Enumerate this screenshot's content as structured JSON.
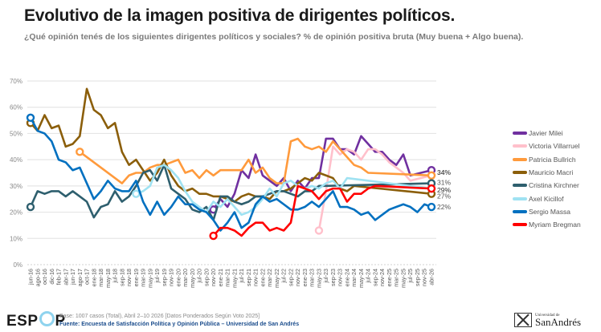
{
  "header": {
    "title": "Evolutivo de la imagen positiva de dirigentes políticos.",
    "subtitle": "¿Qué opinión tenés de los siguientes dirigentes políticos y sociales? % de opinión positiva bruta (Muy buena + Algo buena)."
  },
  "footer": {
    "logo": "ESPOP",
    "base": "Base: 1007 casos (Total), Abril 2–10 2026 [Datos Ponderados Según Voto 2025]",
    "fuente": "Fuente: Encuesta de Satisfacción Política y Opinión Pública – Universidad de San Andrés",
    "university_small": "Universidad de",
    "university_big": "SanAndrés"
  },
  "chart_data": {
    "type": "line",
    "title": "Evolutivo de la imagen positiva de dirigentes políticos.",
    "xlabel": "",
    "ylabel": "",
    "ylim": [
      0,
      70
    ],
    "yticks": [
      "0%",
      "10%",
      "20%",
      "30%",
      "40%",
      "50%",
      "60%",
      "70%"
    ],
    "grid": true,
    "legend_position": "right",
    "x": [
      "jun-16",
      "ago-16",
      "oct-16",
      "dic-16",
      "feb-17",
      "abr-17",
      "jun-17",
      "ago-17",
      "oct-17",
      "ene-18",
      "mar-18",
      "may-18",
      "jul-18",
      "sep-18",
      "nov-18",
      "ene-19",
      "mar-19",
      "may-19",
      "jul-19",
      "sep-19",
      "nov-19",
      "ene-20",
      "mar-20",
      "may-20",
      "jul-20",
      "sep-20",
      "nov-20",
      "ene-21",
      "mar-21",
      "may-21",
      "jul-21",
      "sep-21",
      "nov-21",
      "ene-22",
      "mar-22",
      "may-22",
      "jul-22",
      "sep-22",
      "nov-22",
      "ene-23",
      "mar-23",
      "may-23",
      "jul-23",
      "sep-23",
      "nov-23",
      "ene-24",
      "mar-24",
      "may-24",
      "jul-24",
      "sep-24",
      "nov-24",
      "ene-25",
      "mar-25",
      "may-25",
      "jul-25",
      "sep-25",
      "nov-25",
      "abr-26"
    ],
    "series": [
      {
        "name": "Javier Milei",
        "color": "#7030a0",
        "end_label": "",
        "values": [
          null,
          null,
          null,
          null,
          null,
          null,
          null,
          null,
          null,
          null,
          null,
          null,
          null,
          null,
          null,
          null,
          null,
          null,
          null,
          null,
          null,
          null,
          null,
          null,
          null,
          null,
          21,
          25,
          22,
          27,
          36,
          33,
          42,
          34,
          32,
          30,
          33,
          28,
          32,
          29,
          33,
          33,
          48,
          48,
          44,
          44,
          42,
          49,
          46,
          43,
          43,
          40,
          38,
          42,
          34,
          null,
          null,
          36
        ]
      },
      {
        "name": "Victoria Villarruel",
        "color": "#ffc0cb",
        "end_label": "",
        "values": [
          null,
          null,
          null,
          null,
          null,
          null,
          null,
          null,
          null,
          null,
          null,
          null,
          null,
          null,
          null,
          null,
          null,
          null,
          null,
          null,
          null,
          null,
          null,
          null,
          null,
          null,
          null,
          null,
          null,
          null,
          null,
          null,
          null,
          null,
          null,
          null,
          null,
          null,
          null,
          null,
          null,
          13,
          28,
          45,
          42,
          44,
          43,
          40,
          44,
          44,
          42,
          39,
          37,
          35,
          32,
          null,
          null,
          34
        ]
      },
      {
        "name": "Patricia Bullrich",
        "color": "#ff9a3c",
        "end_label": "34%",
        "values": [
          null,
          null,
          null,
          null,
          null,
          null,
          null,
          43,
          null,
          null,
          null,
          null,
          null,
          31,
          34,
          35,
          35,
          37,
          38,
          38,
          39,
          40,
          35,
          36,
          33,
          36,
          34,
          36,
          36,
          36,
          36,
          40,
          35,
          37,
          33,
          31,
          31,
          47,
          48,
          45,
          44,
          45,
          43,
          47,
          44,
          41,
          38,
          37,
          35,
          null,
          null,
          null,
          null,
          null,
          null,
          null,
          null,
          34
        ]
      },
      {
        "name": "Mauricio Macri",
        "color": "#8b5e0a",
        "end_label": "27%",
        "values": [
          54,
          51,
          57,
          52,
          53,
          45,
          46,
          49,
          67,
          59,
          57,
          52,
          54,
          43,
          38,
          40,
          36,
          32,
          35,
          40,
          34,
          30,
          28,
          29,
          27,
          27,
          26,
          26,
          25,
          24,
          26,
          27,
          26,
          26,
          25,
          28,
          28,
          29,
          31,
          33,
          32,
          35,
          34,
          33,
          29,
          28,
          30,
          null,
          null,
          null,
          null,
          null,
          null,
          null,
          null,
          null,
          null,
          27
        ]
      },
      {
        "name": "Cristina Kirchner",
        "color": "#2e5f6e",
        "end_label": "31%",
        "values": [
          22,
          28,
          27,
          28,
          28,
          26,
          28,
          26,
          24,
          18,
          22,
          23,
          28,
          24,
          26,
          30,
          35,
          36,
          32,
          38,
          29,
          27,
          25,
          21,
          20,
          22,
          17,
          26,
          26,
          24,
          23,
          24,
          26,
          26,
          27,
          28,
          28,
          27,
          26,
          28,
          28,
          30,
          30,
          null,
          null,
          null,
          null,
          null,
          null,
          null,
          null,
          null,
          null,
          null,
          null,
          null,
          null,
          31
        ]
      },
      {
        "name": "Axel Kicillof",
        "color": "#9fe2f2",
        "end_label": "29%",
        "values": [
          null,
          null,
          null,
          null,
          null,
          null,
          null,
          null,
          null,
          null,
          null,
          null,
          null,
          null,
          null,
          27,
          28,
          30,
          37,
          38,
          36,
          33,
          28,
          24,
          22,
          20,
          24,
          22,
          25,
          22,
          19,
          20,
          22,
          25,
          29,
          26,
          31,
          32,
          30,
          29,
          30,
          29,
          31,
          32,
          29,
          33,
          null,
          null,
          null,
          null,
          null,
          null,
          null,
          null,
          null,
          null,
          null,
          29
        ]
      },
      {
        "name": "Sergio Massa",
        "color": "#0070c0",
        "end_label": "22%",
        "values": [
          56,
          51,
          50,
          47,
          40,
          39,
          36,
          37,
          31,
          25,
          28,
          32,
          29,
          28,
          28,
          32,
          24,
          19,
          24,
          19,
          22,
          26,
          23,
          23,
          21,
          20,
          17,
          13,
          16,
          20,
          14,
          16,
          23,
          26,
          24,
          25,
          23,
          21,
          21,
          22,
          24,
          22,
          25,
          28,
          22,
          22,
          21,
          19,
          20,
          17,
          19,
          21,
          22,
          23,
          22,
          20,
          23,
          22
        ]
      },
      {
        "name": "Myriam Bregman",
        "color": "#ff0000",
        "end_label": "29%",
        "values": [
          null,
          null,
          null,
          null,
          null,
          null,
          null,
          null,
          null,
          null,
          null,
          null,
          null,
          null,
          null,
          null,
          null,
          null,
          null,
          null,
          null,
          null,
          null,
          null,
          null,
          null,
          11,
          14,
          14,
          13,
          11,
          14,
          16,
          16,
          13,
          14,
          13,
          16,
          30,
          29,
          28,
          25,
          28,
          29,
          29,
          24,
          27,
          27,
          29,
          30,
          null,
          null,
          null,
          null,
          null,
          null,
          null,
          29
        ]
      }
    ]
  }
}
